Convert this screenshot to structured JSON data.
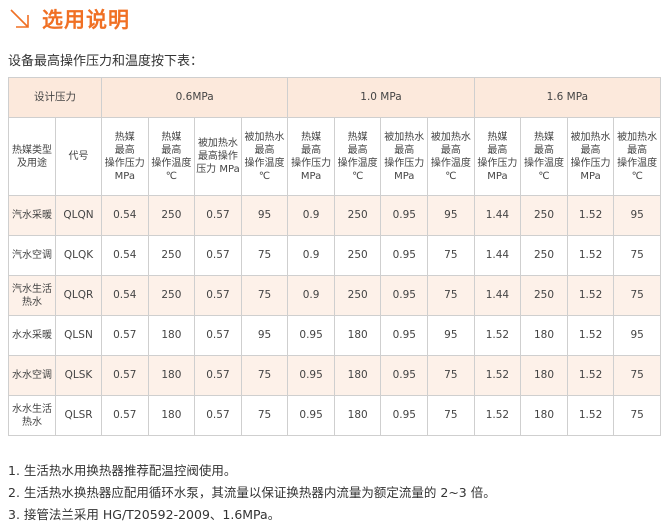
{
  "title": "选用说明",
  "title_icon": "arrow-down-right-icon",
  "accent": "#f07024",
  "intro": "设备最高操作压力和温度按下表：",
  "table": {
    "design_pressure_label": "设计压力",
    "groups": [
      "0.6MPa",
      "1.0 MPa",
      "1.6 MPa"
    ],
    "col_type": "热媒类型及用途",
    "col_code": "代号",
    "sub_headers": [
      [
        "热媒\n最高\n操作压力\nMPa",
        "热媒\n最高\n操作温度\n℃",
        "被加热水\n最高操作\n压力 MPa",
        "被加热水\n最高\n操作温度\n℃"
      ],
      [
        "热媒\n最高\n操作压力\nMPa",
        "热媒\n最高\n操作温度\n℃",
        "被加热水\n最高\n操作压力\nMPa",
        "被加热水\n最高\n操作温度\n℃"
      ],
      [
        "热媒\n最高\n操作压力\nMPa",
        "热媒\n最高\n操作温度\n℃",
        "被加热水\n最高\n操作压力\nMPa",
        "被加热水\n最高\n操作温度\n℃"
      ]
    ],
    "rows": [
      {
        "type": "汽水采暖",
        "code": "QLQN",
        "values": [
          "0.54",
          "250",
          "0.57",
          "95",
          "0.9",
          "250",
          "0.95",
          "95",
          "1.44",
          "250",
          "1.52",
          "95"
        ]
      },
      {
        "type": "汽水空调",
        "code": "QLQK",
        "values": [
          "0.54",
          "250",
          "0.57",
          "75",
          "0.9",
          "250",
          "0.95",
          "75",
          "1.44",
          "250",
          "1.52",
          "75"
        ]
      },
      {
        "type": "汽水生活热水",
        "code": "QLQR",
        "values": [
          "0.54",
          "250",
          "0.57",
          "75",
          "0.9",
          "250",
          "0.95",
          "75",
          "1.44",
          "250",
          "1.52",
          "75"
        ]
      },
      {
        "type": "水水采暖",
        "code": "QLSN",
        "values": [
          "0.57",
          "180",
          "0.57",
          "95",
          "0.95",
          "180",
          "0.95",
          "95",
          "1.52",
          "180",
          "1.52",
          "95"
        ]
      },
      {
        "type": "水水空调",
        "code": "QLSK",
        "values": [
          "0.57",
          "180",
          "0.57",
          "75",
          "0.95",
          "180",
          "0.95",
          "75",
          "1.52",
          "180",
          "1.52",
          "75"
        ]
      },
      {
        "type": "水水生活热水",
        "code": "QLSR",
        "values": [
          "0.57",
          "180",
          "0.57",
          "75",
          "0.95",
          "180",
          "0.95",
          "75",
          "1.52",
          "180",
          "1.52",
          "75"
        ]
      }
    ]
  },
  "notes": [
    "1. 生活热水用换热器推荐配温控阀使用。",
    "2. 生活热水换热器应配用循环水泵，其流量以保证换热器内流量为额定流量的 2~3 倍。",
    "3. 接管法兰采用 HG/T20592-2009、1.6MPa。"
  ]
}
